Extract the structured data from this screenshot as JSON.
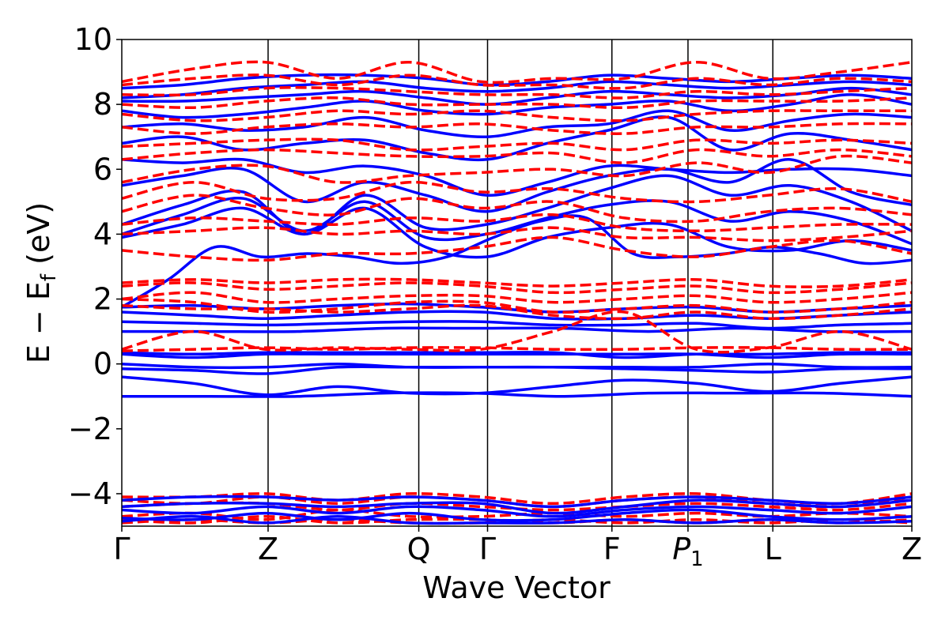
{
  "chart_data": {
    "type": "line",
    "xlabel": "Wave Vector",
    "ylabel": "E − E",
    "ylabel_sub": "f",
    "ylabel_unit": "(eV)",
    "ylim": [
      -5,
      10
    ],
    "yticks": [
      -4,
      -2,
      0,
      2,
      4,
      6,
      8,
      10
    ],
    "ytick_labels": [
      "−4",
      "−2",
      "0",
      "2",
      "4",
      "6",
      "8",
      "10"
    ],
    "x_points": [
      {
        "label": "Γ",
        "x": 0.0
      },
      {
        "label": "Z",
        "x": 1.0
      },
      {
        "label": "Q",
        "x": 2.03
      },
      {
        "label": "Γ",
        "x": 2.5
      },
      {
        "label": "F",
        "x": 3.35
      },
      {
        "label": "P",
        "sub": "1",
        "italic": true,
        "x": 3.87
      },
      {
        "label": "L",
        "x": 4.45
      },
      {
        "label": "Z",
        "x": 5.4
      }
    ],
    "grid": false,
    "colors": {
      "solid_series": "#0000ff",
      "dashed_series": "#ff0000",
      "axes": "#000000"
    },
    "series": [
      {
        "style": "solid",
        "color": "#0000ff",
        "bands": [
          [
            -1.0,
            -1.0,
            -1.0,
            -0.9,
            -0.9,
            -1.0,
            -0.9,
            -0.9,
            -0.9,
            -1.0
          ],
          [
            -0.4,
            -0.6,
            -0.95,
            -0.7,
            -0.9,
            -0.9,
            -0.7,
            -0.5,
            -0.6,
            -0.85,
            -0.6,
            -0.4
          ],
          [
            -0.15,
            -0.2,
            -0.3,
            -0.1,
            -0.1,
            -0.1,
            -0.1,
            -0.15,
            -0.2,
            -0.25,
            -0.15,
            -0.15
          ],
          [
            0.0,
            -0.1,
            -0.1,
            0.0,
            -0.1,
            -0.1,
            -0.1,
            -0.1,
            -0.1,
            0.0,
            -0.1,
            -0.1
          ],
          [
            0.3,
            0.2,
            0.3,
            0.3,
            0.3,
            0.3,
            0.3,
            0.3,
            0.3,
            0.2,
            0.3,
            0.3
          ],
          [
            0.35,
            0.3,
            0.35,
            0.35,
            0.35,
            0.35,
            0.35,
            0.2,
            0.3,
            0.3,
            0.35,
            0.35
          ],
          [
            1.0,
            1.0,
            1.0,
            1.1,
            1.1,
            1.1,
            1.0,
            1.1,
            1.0,
            1.0
          ],
          [
            1.3,
            1.25,
            1.2,
            1.25,
            1.3,
            1.3,
            1.2,
            1.2,
            1.25,
            1.1,
            1.2,
            1.25
          ],
          [
            1.6,
            1.5,
            1.4,
            1.5,
            1.6,
            1.6,
            1.4,
            1.4,
            1.5,
            1.4,
            1.5,
            1.6
          ],
          [
            1.75,
            1.8,
            1.7,
            1.8,
            1.85,
            1.75,
            1.6,
            1.7,
            1.75,
            1.6,
            1.7,
            1.8
          ],
          [
            1.75,
            2.6,
            3.6,
            3.3,
            3.4,
            3.3,
            3.1,
            3.3,
            3.9,
            4.4,
            4.5,
            3.4,
            3.3,
            3.4,
            3.6,
            3.4,
            3.1,
            3.2
          ],
          [
            3.9,
            4.3,
            4.8,
            4.0,
            4.8,
            3.6,
            3.3,
            3.9,
            4.2,
            4.3,
            3.6,
            3.5,
            3.8,
            3.5
          ],
          [
            4.0,
            4.6,
            5.1,
            4.1,
            5.0,
            3.9,
            4.0,
            4.5,
            4.9,
            5.0,
            4.4,
            4.7,
            4.4,
            3.7
          ],
          [
            4.3,
            4.9,
            5.3,
            4.0,
            5.2,
            4.2,
            4.3,
            4.8,
            5.4,
            5.8,
            5.2,
            5.5,
            5.0,
            4.1
          ],
          [
            5.5,
            5.8,
            6.0,
            5.0,
            5.6,
            5.2,
            4.7,
            5.3,
            5.8,
            6.0,
            5.6,
            6.3,
            5.3,
            4.9
          ],
          [
            6.3,
            6.2,
            6.3,
            5.9,
            6.1,
            5.8,
            5.2,
            5.6,
            6.1,
            6.0,
            5.9,
            6.0,
            6.0,
            5.8
          ],
          [
            6.8,
            7.0,
            6.6,
            6.8,
            6.9,
            6.5,
            6.3,
            6.8,
            7.2,
            7.6,
            6.6,
            7.1,
            6.9,
            6.6
          ],
          [
            7.3,
            7.4,
            7.2,
            7.3,
            7.6,
            7.2,
            7.0,
            7.3,
            7.4,
            7.8,
            7.2,
            7.5,
            7.7,
            7.6
          ],
          [
            7.8,
            7.6,
            7.7,
            7.9,
            8.1,
            7.8,
            7.7,
            7.9,
            8.0,
            8.1,
            7.8,
            8.0,
            8.3,
            8.0
          ],
          [
            8.1,
            8.1,
            8.2,
            8.3,
            8.4,
            8.2,
            8.0,
            8.2,
            8.4,
            8.3,
            8.2,
            8.3,
            8.5,
            8.3
          ],
          [
            8.2,
            8.3,
            8.5,
            8.6,
            8.7,
            8.5,
            8.4,
            8.5,
            8.7,
            8.6,
            8.5,
            8.6,
            8.7,
            8.6
          ],
          [
            8.5,
            8.6,
            8.8,
            8.9,
            8.9,
            8.8,
            8.6,
            8.7,
            8.9,
            8.8,
            8.7,
            8.8,
            8.9,
            8.8
          ]
        ]
      },
      {
        "style": "dashed",
        "color": "#ff0000",
        "bands": [
          [
            0.4,
            0.45,
            0.5,
            0.45,
            0.5,
            0.5,
            0.45,
            0.45,
            0.5,
            0.5,
            0.45,
            0.45
          ],
          [
            0.45,
            1.0,
            0.45,
            0.5,
            0.45,
            0.45,
            1.0,
            1.6,
            0.45,
            0.5,
            1.0,
            0.45
          ],
          [
            1.8,
            1.7,
            1.7,
            1.6,
            1.7,
            1.8,
            1.5,
            1.4,
            1.6,
            1.4,
            1.5,
            1.7
          ],
          [
            2.0,
            1.9,
            1.6,
            1.7,
            1.9,
            1.9,
            1.6,
            1.7,
            1.8,
            1.6,
            1.7,
            1.9
          ],
          [
            2.0,
            2.2,
            1.9,
            2.0,
            2.1,
            2.1,
            1.9,
            2.0,
            2.1,
            1.9,
            2.0,
            2.2
          ],
          [
            2.4,
            2.5,
            2.3,
            2.4,
            2.5,
            2.4,
            2.2,
            2.3,
            2.4,
            2.2,
            2.3,
            2.5
          ],
          [
            2.5,
            2.6,
            2.5,
            2.6,
            2.6,
            2.5,
            2.4,
            2.5,
            2.6,
            2.4,
            2.4,
            2.6
          ],
          [
            3.5,
            3.3,
            3.2,
            3.4,
            3.4,
            3.6,
            3.9,
            3.5,
            3.3,
            3.6,
            3.8,
            3.4
          ],
          [
            4.0,
            4.1,
            4.2,
            4.0,
            4.1,
            4.0,
            4.2,
            3.9,
            3.9,
            3.8,
            3.9,
            4.1
          ],
          [
            4.3,
            4.5,
            4.4,
            4.3,
            4.5,
            4.4,
            4.6,
            4.2,
            4.1,
            4.2,
            4.3,
            4.3
          ],
          [
            4.7,
            5.2,
            4.8,
            4.6,
            5.1,
            4.8,
            5.0,
            4.5,
            4.4,
            4.7,
            4.8,
            4.6
          ],
          [
            5.1,
            5.6,
            5.1,
            5.1,
            5.6,
            5.3,
            5.4,
            5.1,
            5.0,
            5.2,
            5.4,
            5.0
          ],
          [
            5.6,
            6.0,
            6.1,
            5.6,
            5.8,
            5.9,
            6.0,
            5.8,
            6.2,
            5.9,
            6.4,
            6.2
          ],
          [
            6.3,
            6.5,
            6.6,
            6.5,
            6.4,
            6.4,
            6.5,
            6.2,
            6.6,
            6.4,
            6.6,
            6.4
          ],
          [
            6.7,
            6.8,
            6.9,
            6.9,
            6.6,
            6.7,
            6.8,
            6.6,
            6.9,
            6.8,
            6.9,
            6.8
          ],
          [
            7.3,
            7.1,
            7.3,
            7.4,
            7.3,
            7.4,
            7.2,
            7.1,
            7.3,
            7.3,
            7.4,
            7.4
          ],
          [
            7.7,
            7.5,
            7.6,
            7.8,
            7.7,
            7.8,
            7.6,
            7.5,
            7.7,
            7.8,
            7.8,
            7.8
          ],
          [
            8.0,
            7.9,
            8.1,
            8.2,
            8.0,
            8.0,
            8.0,
            7.9,
            8.1,
            8.1,
            8.1,
            8.2
          ],
          [
            8.3,
            8.3,
            8.5,
            8.5,
            8.4,
            8.3,
            8.3,
            8.2,
            8.4,
            8.3,
            8.4,
            8.5
          ],
          [
            8.6,
            8.8,
            8.9,
            8.6,
            8.9,
            8.6,
            8.6,
            8.5,
            8.8,
            8.6,
            8.8,
            8.7
          ],
          [
            8.7,
            9.1,
            9.3,
            8.8,
            9.3,
            8.7,
            8.8,
            8.8,
            9.3,
            8.8,
            9.0,
            9.3
          ],
          [
            -4.1,
            -4.1,
            -4.0,
            -4.2,
            -4.0,
            -4.1,
            -4.3,
            -4.1,
            -4.0,
            -4.2,
            -4.3,
            -4.0
          ],
          [
            -4.2,
            -4.3,
            -4.1,
            -4.3,
            -4.1,
            -4.2,
            -4.4,
            -4.2,
            -4.1,
            -4.3,
            -4.4,
            -4.1
          ],
          [
            -4.4,
            -4.3,
            -4.3,
            -4.5,
            -4.3,
            -4.4,
            -4.5,
            -4.4,
            -4.3,
            -4.4,
            -4.5,
            -4.3
          ],
          [
            -4.7,
            -4.6,
            -4.8,
            -4.5,
            -4.7,
            -4.7,
            -4.6,
            -4.7,
            -4.6,
            -4.7,
            -4.6,
            -4.7
          ],
          [
            -4.8,
            -4.9,
            -4.7,
            -4.9,
            -4.8,
            -4.8,
            -4.9,
            -4.8,
            -4.9,
            -4.8,
            -4.9,
            -4.8
          ],
          [
            -4.9,
            -4.8,
            -4.9,
            -4.8,
            -4.9,
            -4.9,
            -4.8,
            -4.9,
            -4.8,
            -4.9,
            -4.8,
            -4.9
          ]
        ]
      },
      {
        "style": "solid",
        "color": "#0000ff",
        "bands": [
          [
            -4.2,
            -4.1,
            -4.1,
            -4.2,
            -4.1,
            -4.2,
            -4.4,
            -4.2,
            -4.1,
            -4.2,
            -4.3,
            -4.1
          ],
          [
            -4.4,
            -4.3,
            -4.3,
            -4.4,
            -4.3,
            -4.3,
            -4.6,
            -4.4,
            -4.2,
            -4.3,
            -4.4,
            -4.2
          ],
          [
            -4.5,
            -4.6,
            -4.4,
            -4.6,
            -4.4,
            -4.5,
            -4.7,
            -4.5,
            -4.4,
            -4.5,
            -4.6,
            -4.4
          ],
          [
            -4.75,
            -4.8,
            -4.6,
            -4.8,
            -4.6,
            -4.8,
            -4.8,
            -4.6,
            -4.5,
            -4.7,
            -4.8,
            -4.7
          ],
          [
            -4.85,
            -4.7,
            -4.9,
            -4.7,
            -4.9,
            -4.9,
            -4.9,
            -4.8,
            -4.9,
            -4.8,
            -4.9,
            -4.85
          ]
        ]
      }
    ]
  }
}
